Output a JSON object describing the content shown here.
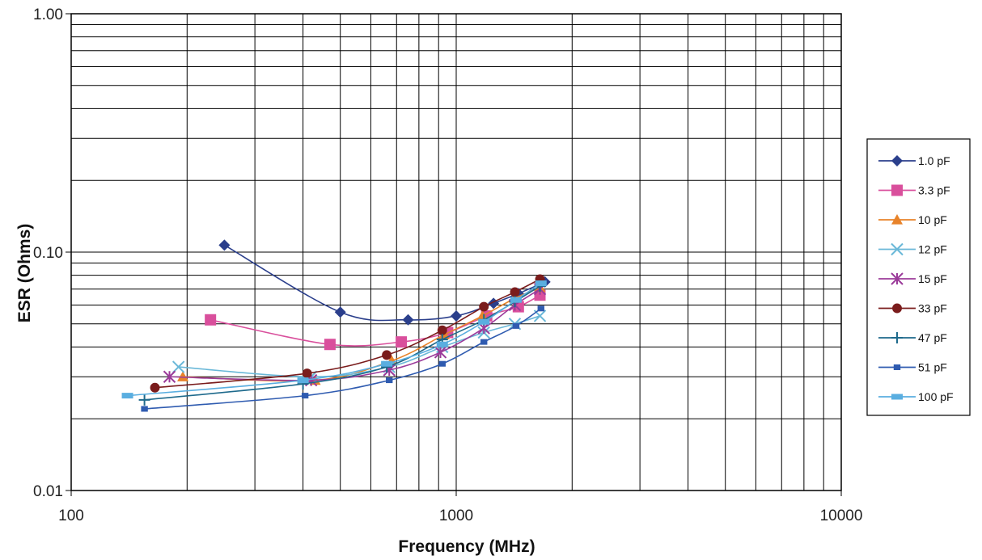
{
  "chart_data": {
    "type": "line",
    "title": "",
    "xlabel": "Frequency (MHz)",
    "ylabel": "ESR (Ohms)",
    "x_scale": "log",
    "y_scale": "log",
    "xlim": [
      100,
      10000
    ],
    "ylim": [
      0.01,
      1.0
    ],
    "x_ticks": [
      "100",
      "1000",
      "10000"
    ],
    "y_ticks": [
      "0.01",
      "0.10",
      "1.00"
    ],
    "grid": true,
    "legend_position": "right",
    "series": [
      {
        "name": "1.0 pF",
        "color": "#2b3f8c",
        "marker": "diamond",
        "points": [
          [
            250,
            0.107
          ],
          [
            500,
            0.056
          ],
          [
            750,
            0.052
          ],
          [
            1000,
            0.054
          ],
          [
            1250,
            0.061
          ],
          [
            1450,
            0.067
          ],
          [
            1700,
            0.075
          ]
        ]
      },
      {
        "name": "3.3 pF",
        "color": "#d94f9c",
        "marker": "square",
        "points": [
          [
            230,
            0.052
          ],
          [
            470,
            0.041
          ],
          [
            720,
            0.042
          ],
          [
            950,
            0.046
          ],
          [
            1200,
            0.054
          ],
          [
            1450,
            0.059
          ],
          [
            1650,
            0.066
          ]
        ]
      },
      {
        "name": "10 pF",
        "color": "#e8832a",
        "marker": "triangle",
        "points": [
          [
            195,
            0.03
          ],
          [
            430,
            0.029
          ],
          [
            680,
            0.035
          ],
          [
            930,
            0.045
          ],
          [
            1170,
            0.054
          ],
          [
            1420,
            0.064
          ],
          [
            1650,
            0.071
          ]
        ]
      },
      {
        "name": "12 pF",
        "color": "#6ab8d8",
        "marker": "x",
        "points": [
          [
            190,
            0.033
          ],
          [
            420,
            0.03
          ],
          [
            670,
            0.033
          ],
          [
            920,
            0.04
          ],
          [
            1180,
            0.046
          ],
          [
            1420,
            0.05
          ],
          [
            1650,
            0.054
          ]
        ]
      },
      {
        "name": "15 pF",
        "color": "#9b3b9a",
        "marker": "asterisk",
        "points": [
          [
            180,
            0.03
          ],
          [
            420,
            0.029
          ],
          [
            670,
            0.032
          ],
          [
            910,
            0.038
          ],
          [
            1180,
            0.048
          ],
          [
            1420,
            0.06
          ],
          [
            1650,
            0.07
          ]
        ]
      },
      {
        "name": "33 pF",
        "color": "#7a1c1c",
        "marker": "circle",
        "points": [
          [
            165,
            0.027
          ],
          [
            410,
            0.031
          ],
          [
            660,
            0.037
          ],
          [
            920,
            0.047
          ],
          [
            1180,
            0.059
          ],
          [
            1420,
            0.068
          ],
          [
            1650,
            0.077
          ]
        ]
      },
      {
        "name": "47 pF",
        "color": "#1e6a8c",
        "marker": "plus",
        "points": [
          [
            155,
            0.024
          ],
          [
            400,
            0.028
          ],
          [
            660,
            0.033
          ],
          [
            920,
            0.043
          ],
          [
            1180,
            0.052
          ],
          [
            1420,
            0.062
          ],
          [
            1650,
            0.072
          ]
        ]
      },
      {
        "name": "51 pF",
        "color": "#2f5bb0",
        "marker": "smallsquare",
        "points": [
          [
            155,
            0.022
          ],
          [
            405,
            0.025
          ],
          [
            670,
            0.029
          ],
          [
            920,
            0.034
          ],
          [
            1180,
            0.042
          ],
          [
            1430,
            0.049
          ],
          [
            1660,
            0.058
          ]
        ]
      },
      {
        "name": "100 pF",
        "color": "#5aaee0",
        "marker": "dash",
        "points": [
          [
            140,
            0.025
          ],
          [
            400,
            0.029
          ],
          [
            660,
            0.034
          ],
          [
            920,
            0.041
          ],
          [
            1180,
            0.051
          ],
          [
            1430,
            0.063
          ],
          [
            1660,
            0.074
          ]
        ]
      }
    ]
  }
}
